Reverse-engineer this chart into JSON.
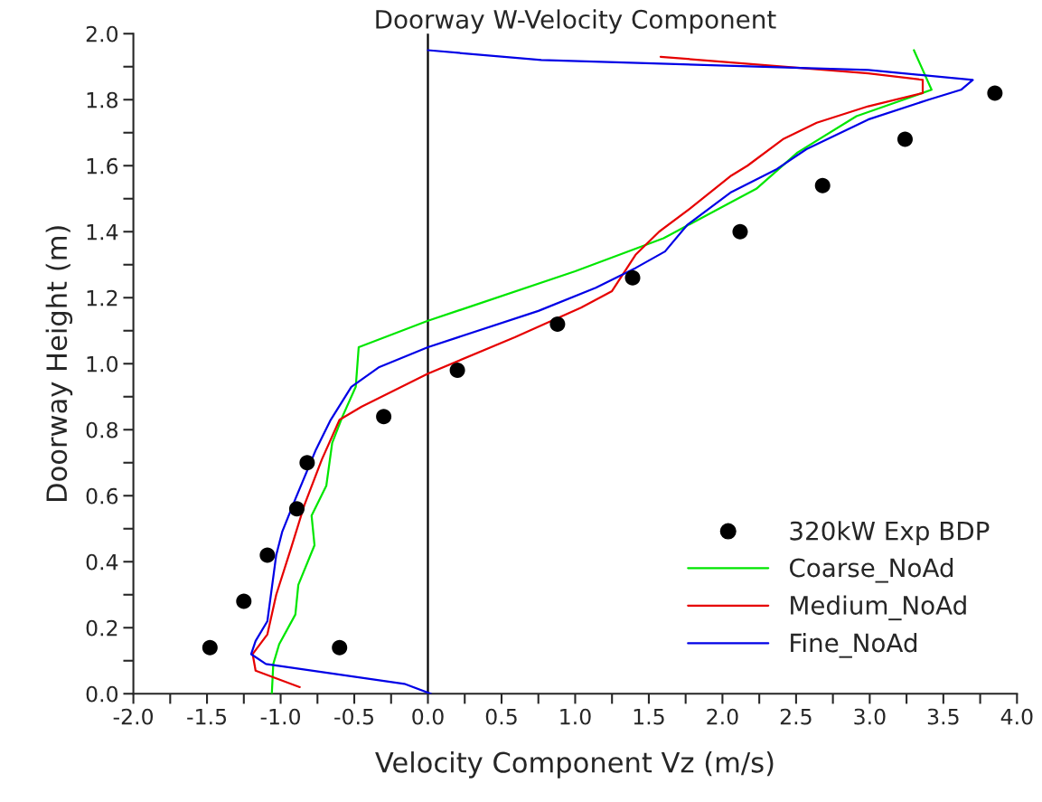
{
  "chart_data": {
    "type": "line",
    "title": "Doorway W-Velocity Component",
    "xlabel": "Velocity Component Vz (m/s)",
    "ylabel": "Doorway Height (m)",
    "xlim": [
      -2.0,
      4.0
    ],
    "ylim": [
      0.0,
      2.0
    ],
    "xticks": [
      {
        "value": -2.0,
        "label": "-2.0"
      },
      {
        "value": -1.75,
        "label": null
      },
      {
        "value": -1.5,
        "label": "-1.5"
      },
      {
        "value": -1.25,
        "label": null
      },
      {
        "value": -1.0,
        "label": "-1.0"
      },
      {
        "value": -0.75,
        "label": null
      },
      {
        "value": -0.5,
        "label": "-0.5"
      },
      {
        "value": -0.25,
        "label": null
      },
      {
        "value": 0.0,
        "label": "0.0"
      },
      {
        "value": 0.25,
        "label": null
      },
      {
        "value": 0.5,
        "label": "0.5"
      },
      {
        "value": 0.75,
        "label": null
      },
      {
        "value": 1.0,
        "label": "1.0"
      },
      {
        "value": 1.25,
        "label": null
      },
      {
        "value": 1.5,
        "label": "1.5"
      },
      {
        "value": 1.75,
        "label": null
      },
      {
        "value": 2.0,
        "label": "2.0"
      },
      {
        "value": 2.25,
        "label": null
      },
      {
        "value": 2.5,
        "label": "2.5"
      },
      {
        "value": 2.75,
        "label": null
      },
      {
        "value": 3.0,
        "label": "3.0"
      },
      {
        "value": 3.25,
        "label": null
      },
      {
        "value": 3.5,
        "label": "3.5"
      },
      {
        "value": 3.75,
        "label": null
      },
      {
        "value": 4.0,
        "label": "4.0"
      }
    ],
    "yticks": [
      {
        "value": 0.0,
        "label": "0.0"
      },
      {
        "value": 0.1,
        "label": null
      },
      {
        "value": 0.2,
        "label": "0.2"
      },
      {
        "value": 0.3,
        "label": null
      },
      {
        "value": 0.4,
        "label": "0.4"
      },
      {
        "value": 0.5,
        "label": null
      },
      {
        "value": 0.6,
        "label": "0.6"
      },
      {
        "value": 0.7,
        "label": null
      },
      {
        "value": 0.8,
        "label": "0.8"
      },
      {
        "value": 0.9,
        "label": null
      },
      {
        "value": 1.0,
        "label": "1.0"
      },
      {
        "value": 1.1,
        "label": null
      },
      {
        "value": 1.2,
        "label": "1.2"
      },
      {
        "value": 1.3,
        "label": null
      },
      {
        "value": 1.4,
        "label": "1.4"
      },
      {
        "value": 1.5,
        "label": null
      },
      {
        "value": 1.6,
        "label": "1.6"
      },
      {
        "value": 1.7,
        "label": null
      },
      {
        "value": 1.8,
        "label": "1.8"
      },
      {
        "value": 1.9,
        "label": null
      },
      {
        "value": 2.0,
        "label": "2.0"
      }
    ],
    "grid": false,
    "legend": "bottom right",
    "ref_lines": [
      {
        "axis": "x",
        "value": 0.0,
        "color": "#000000"
      }
    ],
    "series": [
      {
        "name": "320kW Exp BDP",
        "type": "scatter",
        "marker": "circle",
        "color": "#000000",
        "x": [
          -1.48,
          -1.25,
          -1.09,
          -0.89,
          -0.82,
          -0.3,
          0.2,
          0.88,
          1.39,
          2.12,
          2.68,
          3.24,
          3.85,
          -0.6
        ],
        "values": [
          0.14,
          0.28,
          0.42,
          0.56,
          0.7,
          0.84,
          0.98,
          1.12,
          1.26,
          1.4,
          1.54,
          1.68,
          1.82,
          0.14
        ]
      },
      {
        "name": "Coarse_NoAd",
        "color": "#00e600",
        "x": [
          -1.06,
          -1.05,
          -1.01,
          -0.9,
          -0.88,
          -0.77,
          -0.79,
          -0.69,
          -0.65,
          -0.58,
          -0.49,
          -0.47,
          0.0,
          1.0,
          1.6,
          2.06,
          2.23,
          2.51,
          2.91,
          3.42,
          3.3
        ],
        "values": [
          0.0,
          0.09,
          0.15,
          0.24,
          0.33,
          0.45,
          0.54,
          0.63,
          0.76,
          0.84,
          0.93,
          1.05,
          1.13,
          1.28,
          1.38,
          1.49,
          1.53,
          1.64,
          1.75,
          1.83,
          1.95
        ]
      },
      {
        "name": "Medium_NoAd",
        "color": "#e60000",
        "x": [
          -0.87,
          -1.17,
          -1.19,
          -1.09,
          -1.03,
          -0.93,
          -0.84,
          -0.72,
          -0.6,
          -0.45,
          0.0,
          0.59,
          1.04,
          1.25,
          1.41,
          1.57,
          1.78,
          2.06,
          2.17,
          2.41,
          2.64,
          2.99,
          3.36,
          3.36,
          2.99,
          1.58
        ],
        "values": [
          0.02,
          0.07,
          0.12,
          0.18,
          0.3,
          0.44,
          0.57,
          0.71,
          0.83,
          0.87,
          0.97,
          1.08,
          1.17,
          1.22,
          1.33,
          1.4,
          1.47,
          1.57,
          1.6,
          1.68,
          1.73,
          1.78,
          1.82,
          1.86,
          1.88,
          1.93
        ]
      },
      {
        "name": "Fine_NoAd",
        "color": "#0000e6",
        "x": [
          0.02,
          -0.16,
          -1.1,
          -1.2,
          -1.17,
          -1.09,
          -1.03,
          -0.99,
          -0.9,
          -0.76,
          -0.66,
          -0.52,
          -0.33,
          0.0,
          0.75,
          1.14,
          1.41,
          1.61,
          1.76,
          2.06,
          2.37,
          2.57,
          2.99,
          3.4,
          3.62,
          3.7,
          2.99,
          0.77,
          0.0
        ],
        "values": [
          0.0,
          0.03,
          0.09,
          0.12,
          0.16,
          0.22,
          0.42,
          0.49,
          0.59,
          0.74,
          0.83,
          0.93,
          0.99,
          1.05,
          1.16,
          1.23,
          1.29,
          1.34,
          1.42,
          1.52,
          1.59,
          1.65,
          1.74,
          1.8,
          1.83,
          1.86,
          1.89,
          1.92,
          1.95
        ]
      }
    ]
  }
}
